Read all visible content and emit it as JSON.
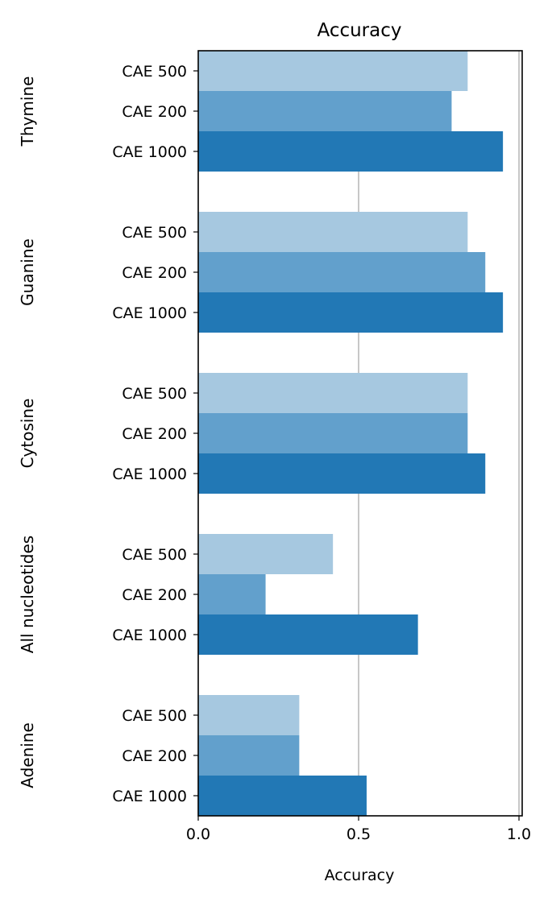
{
  "chart_data": {
    "type": "bar",
    "orientation": "horizontal",
    "title": "Accuracy",
    "xlabel": "Accuracy",
    "ylabel": "",
    "xlim": [
      0,
      1.01
    ],
    "xticks": [
      0.0,
      0.5,
      1.0
    ],
    "xtick_labels": [
      "0.0",
      "0.5",
      "1.0"
    ],
    "grid": "vertical lines at 0.5 and 1.0",
    "legend": "none",
    "groups": [
      {
        "name": "Thymine",
        "bars": [
          {
            "label": "CAE 500",
            "value": 0.84
          },
          {
            "label": "CAE 200",
            "value": 0.79
          },
          {
            "label": "CAE 1000",
            "value": 0.95
          }
        ]
      },
      {
        "name": "Guanine",
        "bars": [
          {
            "label": "CAE 500",
            "value": 0.84
          },
          {
            "label": "CAE 200",
            "value": 0.895
          },
          {
            "label": "CAE 1000",
            "value": 0.95
          }
        ]
      },
      {
        "name": "Cytosine",
        "bars": [
          {
            "label": "CAE 500",
            "value": 0.84
          },
          {
            "label": "CAE 200",
            "value": 0.84
          },
          {
            "label": "CAE 1000",
            "value": 0.895
          }
        ]
      },
      {
        "name": "All nucleotides",
        "bars": [
          {
            "label": "CAE 500",
            "value": 0.42
          },
          {
            "label": "CAE 200",
            "value": 0.21
          },
          {
            "label": "CAE 1000",
            "value": 0.685
          }
        ]
      },
      {
        "name": "Adenine",
        "bars": [
          {
            "label": "CAE 500",
            "value": 0.315
          },
          {
            "label": "CAE 200",
            "value": 0.315
          },
          {
            "label": "CAE 1000",
            "value": 0.525
          }
        ]
      }
    ],
    "colors": {
      "CAE 500": "#a6c8e0",
      "CAE 200": "#62a0cc",
      "CAE 1000": "#2278b5",
      "grid": "#b0b0b0"
    }
  }
}
